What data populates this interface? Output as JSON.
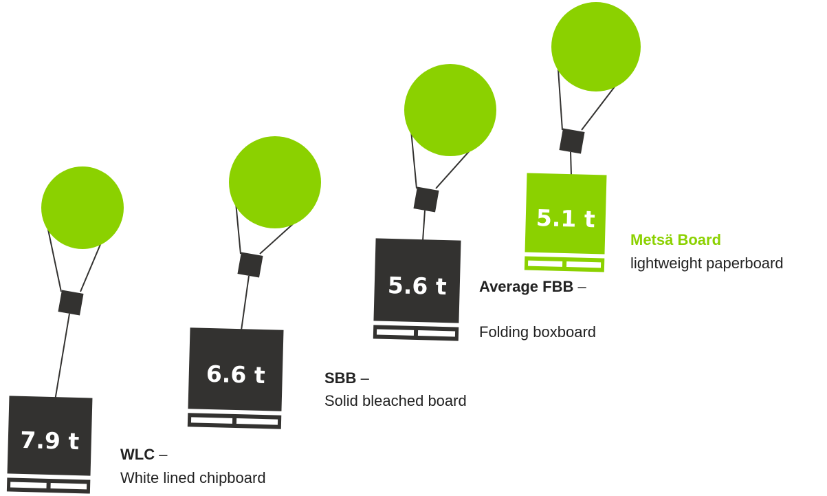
{
  "items": [
    {
      "label": "7.9 t",
      "name": "WLC",
      "separator": "–",
      "description": "White lined chipboard"
    },
    {
      "label": "6.6 t",
      "name": "SBB",
      "separator": "–",
      "description": "Solid bleached board"
    },
    {
      "label": "5.6 t",
      "name": "Average FBB",
      "separator": "–",
      "description": "Folding boxboard"
    },
    {
      "label": "5.1 t",
      "name": "Metsä Board",
      "description": "lightweight paperboard"
    }
  ]
}
